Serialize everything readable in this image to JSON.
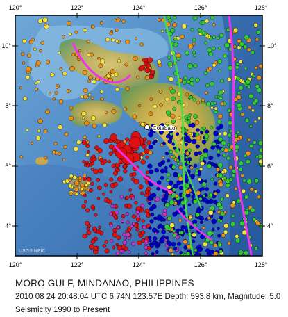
{
  "map": {
    "title": "MORO GULF, MINDANAO, PHILIPPINES",
    "event_line": "2010 08 24 20:48:04 UTC 6.74N 123.57E Depth: 593.8 km, Magnitude: 5.0",
    "seismicity_range": "Seismicity 1990 to Present",
    "credit": "USGS NEIC",
    "place_label": "Cotabato",
    "lon_ticks_top": [
      "120°",
      "122°",
      "124°",
      "126°",
      "128°"
    ],
    "lon_ticks_bottom": [
      "120°",
      "122°",
      "124°",
      "126°",
      "128°"
    ],
    "lat_ticks_left": [
      "10°",
      "8°",
      "6°",
      "4°"
    ],
    "lat_ticks_right": [
      "10°",
      "8°",
      "6°",
      "4°"
    ],
    "extent": {
      "lon": [
        120,
        128
      ],
      "lat": [
        3,
        11
      ]
    },
    "depth_colors": {
      "shallow": "#e8901a",
      "intermediate": "#f5e23a",
      "deep_green": "#33cc33",
      "deep_blue": "#0000cc",
      "deep_magenta": "#cc33cc",
      "very_deep": "#dd1111"
    },
    "plate_boundary_color": "#ee33ee",
    "fault_color": "#44dd44",
    "epicenter_marker_color": "#ffffff"
  }
}
